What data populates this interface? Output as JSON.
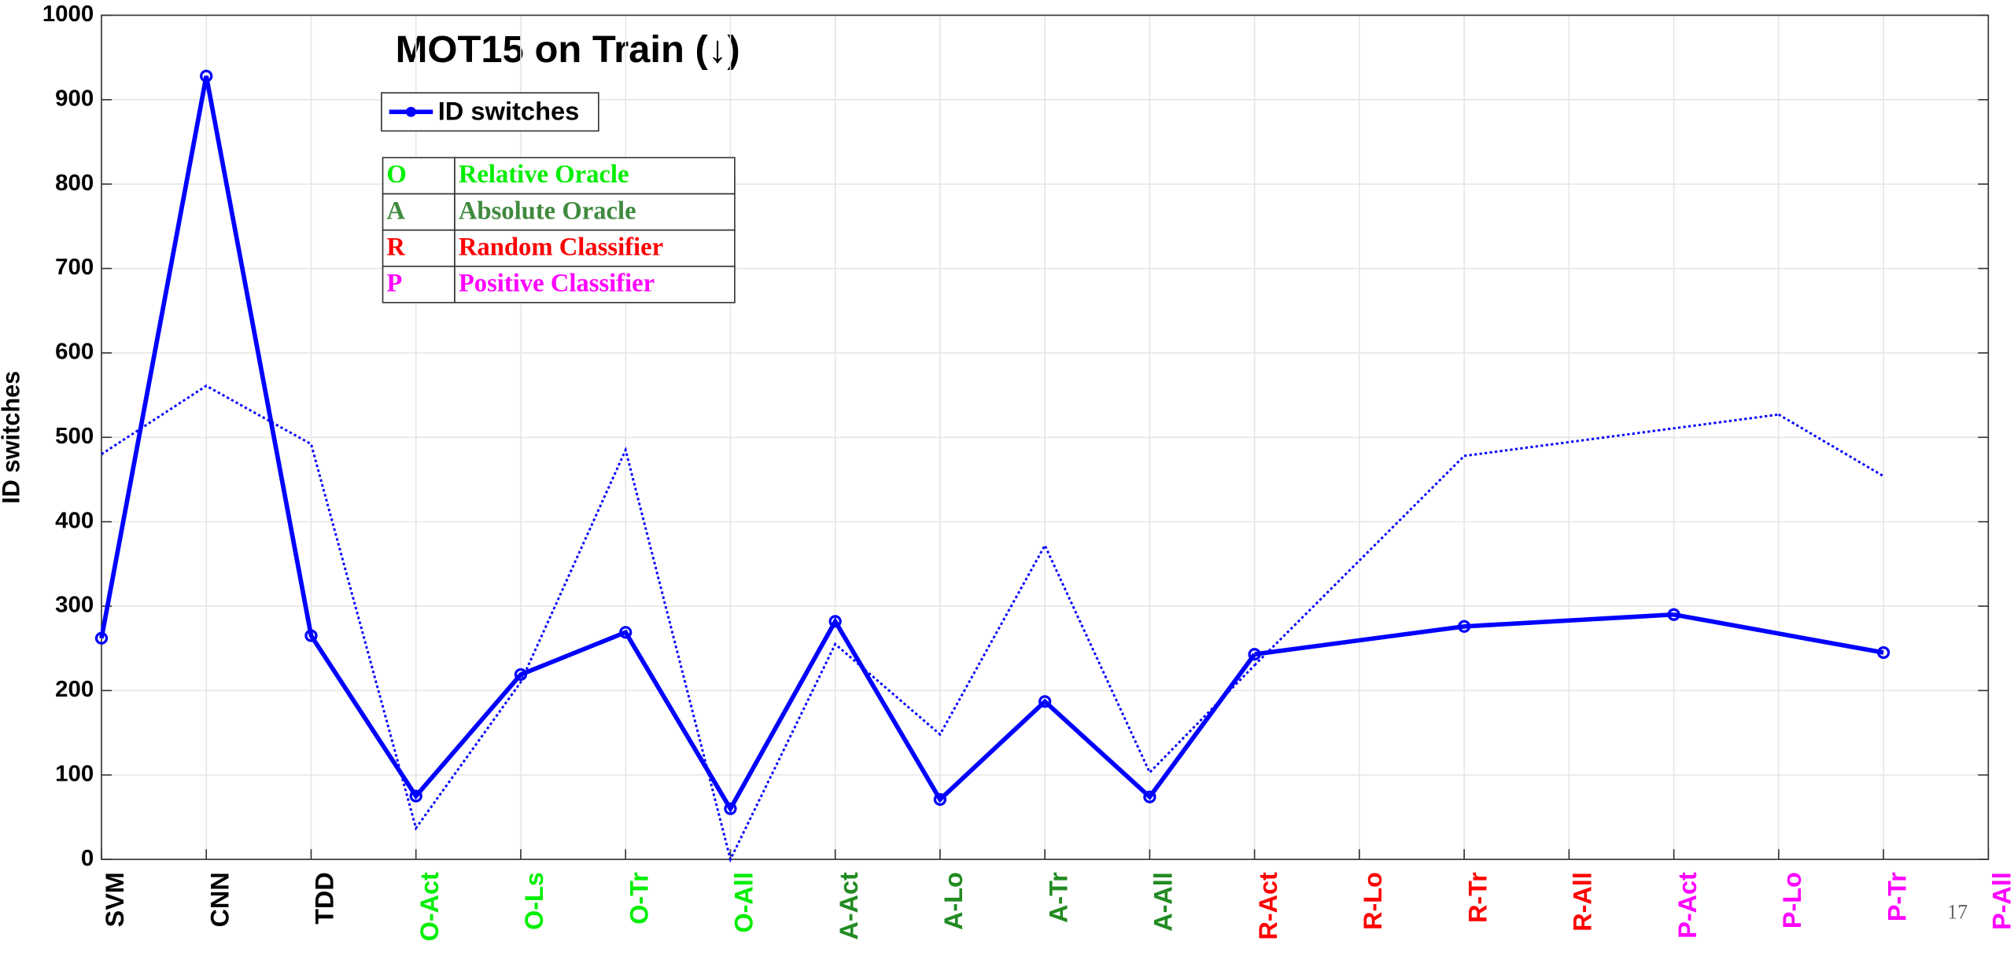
{
  "chart_data": {
    "type": "line",
    "title": "MOT15 on Train  (↓)",
    "y_label": "ID switches",
    "page_number": "17",
    "categories": [
      "SVM",
      "CNN",
      "TDD",
      "O-Act",
      "O-Ls",
      "O-Tr",
      "O-All",
      "A-Act",
      "A-Lo",
      "A-Tr",
      "A-All",
      "R-Act",
      "R-Lo",
      "R-Tr",
      "R-All",
      "P-Act",
      "P-Lo",
      "P-Tr",
      "P-All"
    ],
    "category_colors": [
      "#000000",
      "#000000",
      "#000000",
      "#00ee00",
      "#00ee00",
      "#00ee00",
      "#00ee00",
      "#228b22",
      "#228b22",
      "#228b22",
      "#228b22",
      "#ff0000",
      "#ff0000",
      "#ff0000",
      "#ff0000",
      "#ff00ff",
      "#ff00ff",
      "#ff00ff",
      "#ff00ff"
    ],
    "series": [
      {
        "name": "ID switches",
        "color": "#0000ff",
        "style": "solid",
        "markers": true,
        "values": [
          262,
          928,
          265,
          75,
          219,
          269,
          60,
          282,
          71,
          187,
          74,
          243,
          null,
          276,
          null,
          290,
          null,
          245,
          null
        ]
      },
      {
        "color": "#0000ff",
        "style": "dotted",
        "markers": false,
        "values": [
          480,
          561,
          492,
          37,
          210,
          485,
          0,
          255,
          148,
          372,
          103,
          230,
          null,
          478,
          null,
          null,
          527,
          454,
          null
        ]
      }
    ],
    "connect_gaps": true,
    "ylim": [
      0,
      1000
    ],
    "yticks": [
      0,
      100,
      200,
      300,
      400,
      500,
      600,
      700,
      800,
      900,
      1000
    ],
    "grid": true,
    "legend": "upper left",
    "key_table": [
      {
        "abbr": "O",
        "label": "Relative Oracle",
        "color": "#00ee00"
      },
      {
        "abbr": "A",
        "label": "Absolute Oracle",
        "color": "#3f8a3f"
      },
      {
        "abbr": "R",
        "label": "Random Classifier",
        "color": "#ff0000"
      },
      {
        "abbr": "P",
        "label": "Positive Classifier",
        "color": "#ff00ff"
      }
    ]
  }
}
